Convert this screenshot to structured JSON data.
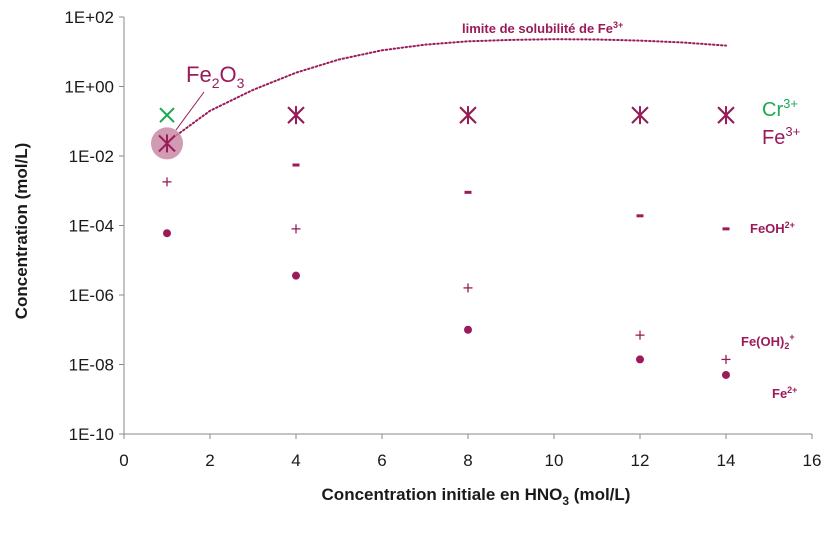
{
  "chart_data": {
    "type": "scatter",
    "xlabel": "Concentration initiale en HNO",
    "xlabel_sub": "3",
    "xlabel_tail": " (mol/L)",
    "ylabel": "Concentration (mol/L)",
    "xlim": [
      0,
      16
    ],
    "ylim_log10": [
      -10,
      2
    ],
    "y_scale": "log",
    "x_ticks": [
      "0",
      "2",
      "4",
      "6",
      "8",
      "10",
      "12",
      "14",
      "16"
    ],
    "y_ticks": [
      "1E-10",
      "1E-08",
      "1E-06",
      "1E-04",
      "1E-02",
      "1E+00",
      "1E+02"
    ],
    "grid": false,
    "colors": {
      "cr": "#1daa55",
      "fe": "#9b1b5a",
      "halo": "#c98aa6",
      "axis": "#888888"
    },
    "series": [
      {
        "name": "Cr3+",
        "marker": "x",
        "x": [
          1,
          4,
          8,
          12,
          14
        ],
        "y": [
          0.15,
          0.15,
          0.15,
          0.15,
          0.15
        ]
      },
      {
        "name": "Fe3+",
        "marker": "asterisk",
        "x": [
          1,
          4,
          8,
          12,
          14
        ],
        "y": [
          0.023,
          0.15,
          0.15,
          0.15,
          0.15
        ]
      },
      {
        "name": "FeOH2+",
        "marker": "dash",
        "x": [
          4,
          8,
          12,
          14
        ],
        "y": [
          0.0055,
          0.0009,
          0.00019,
          8e-05
        ]
      },
      {
        "name": "Fe(OH)2+",
        "marker": "plus",
        "x": [
          1,
          4,
          8,
          12,
          14
        ],
        "y": [
          0.0018,
          8e-05,
          1.6e-06,
          7e-08,
          1.4e-08
        ]
      },
      {
        "name": "Fe2+",
        "marker": "circle",
        "x": [
          1,
          4,
          8,
          12,
          14
        ],
        "y": [
          6e-05,
          3.6e-06,
          1e-07,
          1.4e-08,
          5e-09
        ]
      }
    ],
    "solubility_curve": {
      "label": "limite de solubilité de Fe",
      "label_sup": "3+",
      "x": [
        1,
        2,
        3,
        4,
        5,
        6,
        7,
        8,
        9,
        10,
        11,
        12,
        13,
        14
      ],
      "y": [
        0.025,
        0.2,
        0.8,
        2.5,
        6,
        11,
        16,
        20,
        22,
        23,
        22.5,
        21,
        18.5,
        15
      ]
    },
    "annotations": {
      "fe2o3": {
        "main": "Fe",
        "sub1": "2",
        "mid": "O",
        "sub2": "3"
      },
      "cr3": {
        "main": "Cr",
        "sup": "3+"
      },
      "fe3": {
        "main": "Fe",
        "sup": "3+"
      },
      "feoh": {
        "main": "FeOH",
        "sup": "2+"
      },
      "feoh2": {
        "main": "Fe(OH)",
        "sub": "2",
        "sup": "+"
      },
      "fe2": {
        "main": "Fe",
        "sup": "2+"
      }
    }
  }
}
